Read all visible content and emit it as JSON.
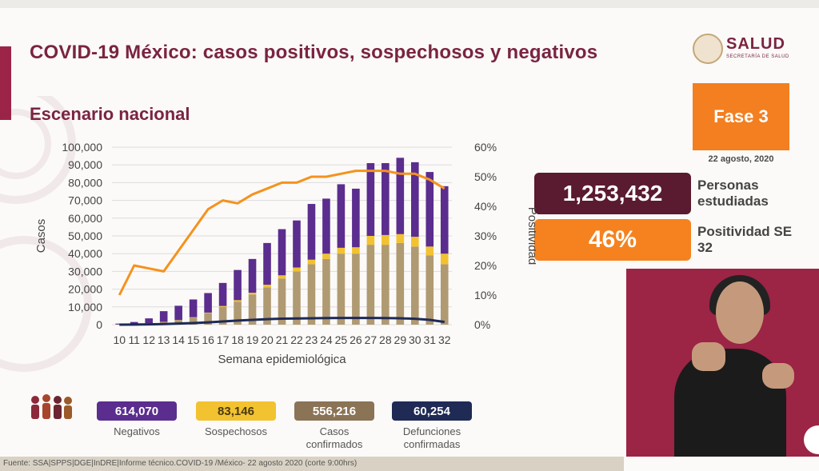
{
  "header": {
    "title": "COVID-19 México: casos positivos, sospechosos y negativos",
    "subtitle": "Escenario nacional"
  },
  "logo": {
    "name": "SALUD",
    "sub": "SECRETARÍA DE SALUD"
  },
  "phase": {
    "label": "Fase 3",
    "date": "22 agosto, 2020"
  },
  "kpis": [
    {
      "value": "1,253,432",
      "label": "Personas estudiadas"
    },
    {
      "value": "46%",
      "label": "Positividad SE 32"
    }
  ],
  "summary": [
    {
      "value": "614,070",
      "label": "Negativos",
      "bg": "#5b2d8e",
      "fg": "#ffffff"
    },
    {
      "value": "83,146",
      "label": "Sospechosos",
      "bg": "#f2c230",
      "fg": "#4a3a10"
    },
    {
      "value": "556,216",
      "label": "Casos confirmados",
      "bg": "#8b7355",
      "fg": "#ffffff"
    },
    {
      "value": "60,254",
      "label": "Defunciones confirmadas",
      "bg": "#1f2a55",
      "fg": "#ffffff"
    }
  ],
  "footer": "Fuente: SSA|SPPS|DGE|InDRE|Informe técnico.COVID-19 /México- 22 agosto 2020 (corte 9:00hrs)",
  "chart_data": {
    "type": "bar",
    "stacked": true,
    "categories": [
      "10",
      "11",
      "12",
      "13",
      "14",
      "15",
      "16",
      "17",
      "18",
      "19",
      "20",
      "21",
      "22",
      "23",
      "24",
      "25",
      "26",
      "27",
      "28",
      "29",
      "30",
      "31",
      "32"
    ],
    "xlabel": "Semana epidemiológica",
    "ylabel": "Casos",
    "y2label": "Positividad",
    "ylim": [
      0,
      100000
    ],
    "y2lim": [
      0,
      60
    ],
    "yticks": [
      "0",
      "10,000",
      "20,000",
      "30,000",
      "40,000",
      "50,000",
      "60,000",
      "70,000",
      "80,000",
      "90,000",
      "100,000"
    ],
    "y2ticks": [
      "0%",
      "10%",
      "20%",
      "30%",
      "40%",
      "50%",
      "60%"
    ],
    "grid": true,
    "colors": {
      "confirmados": "#b09a72",
      "sospechosos": "#f2c230",
      "negativos": "#5b2d8e",
      "positividad": "#f5921e",
      "defunciones": "#1f2a55"
    },
    "series": [
      {
        "key": "confirmados",
        "values": [
          100,
          300,
          700,
          1500,
          2500,
          4000,
          6500,
          10000,
          13000,
          17000,
          21000,
          26000,
          30000,
          34000,
          37000,
          40000,
          40000,
          45000,
          45000,
          46000,
          44000,
          39000,
          34000
        ]
      },
      {
        "key": "sospechosos",
        "values": [
          0,
          0,
          50,
          100,
          150,
          200,
          300,
          500,
          800,
          1000,
          1500,
          1800,
          2200,
          2600,
          3000,
          3300,
          3600,
          5000,
          5500,
          5000,
          5500,
          5000,
          6000
        ]
      },
      {
        "key": "negativos",
        "values": [
          500,
          1200,
          2800,
          6000,
          8000,
          10000,
          11000,
          13000,
          17000,
          19000,
          23500,
          26000,
          26500,
          31400,
          31000,
          35800,
          33000,
          41000,
          40500,
          43000,
          42000,
          42000,
          38000
        ]
      },
      {
        "key": "positividad",
        "type": "line",
        "axis": "right",
        "values": [
          10,
          20,
          19,
          18,
          25,
          32,
          39,
          42,
          41,
          44,
          46,
          48,
          48,
          50,
          50,
          51,
          52,
          52,
          52,
          51,
          51,
          49,
          46
        ]
      },
      {
        "key": "defunciones",
        "type": "line",
        "values": [
          20,
          60,
          150,
          350,
          600,
          900,
          1300,
          1800,
          2300,
          2700,
          3100,
          3400,
          3500,
          3600,
          3700,
          3800,
          3800,
          3800,
          3700,
          3600,
          3300,
          2700,
          1500
        ]
      }
    ]
  }
}
